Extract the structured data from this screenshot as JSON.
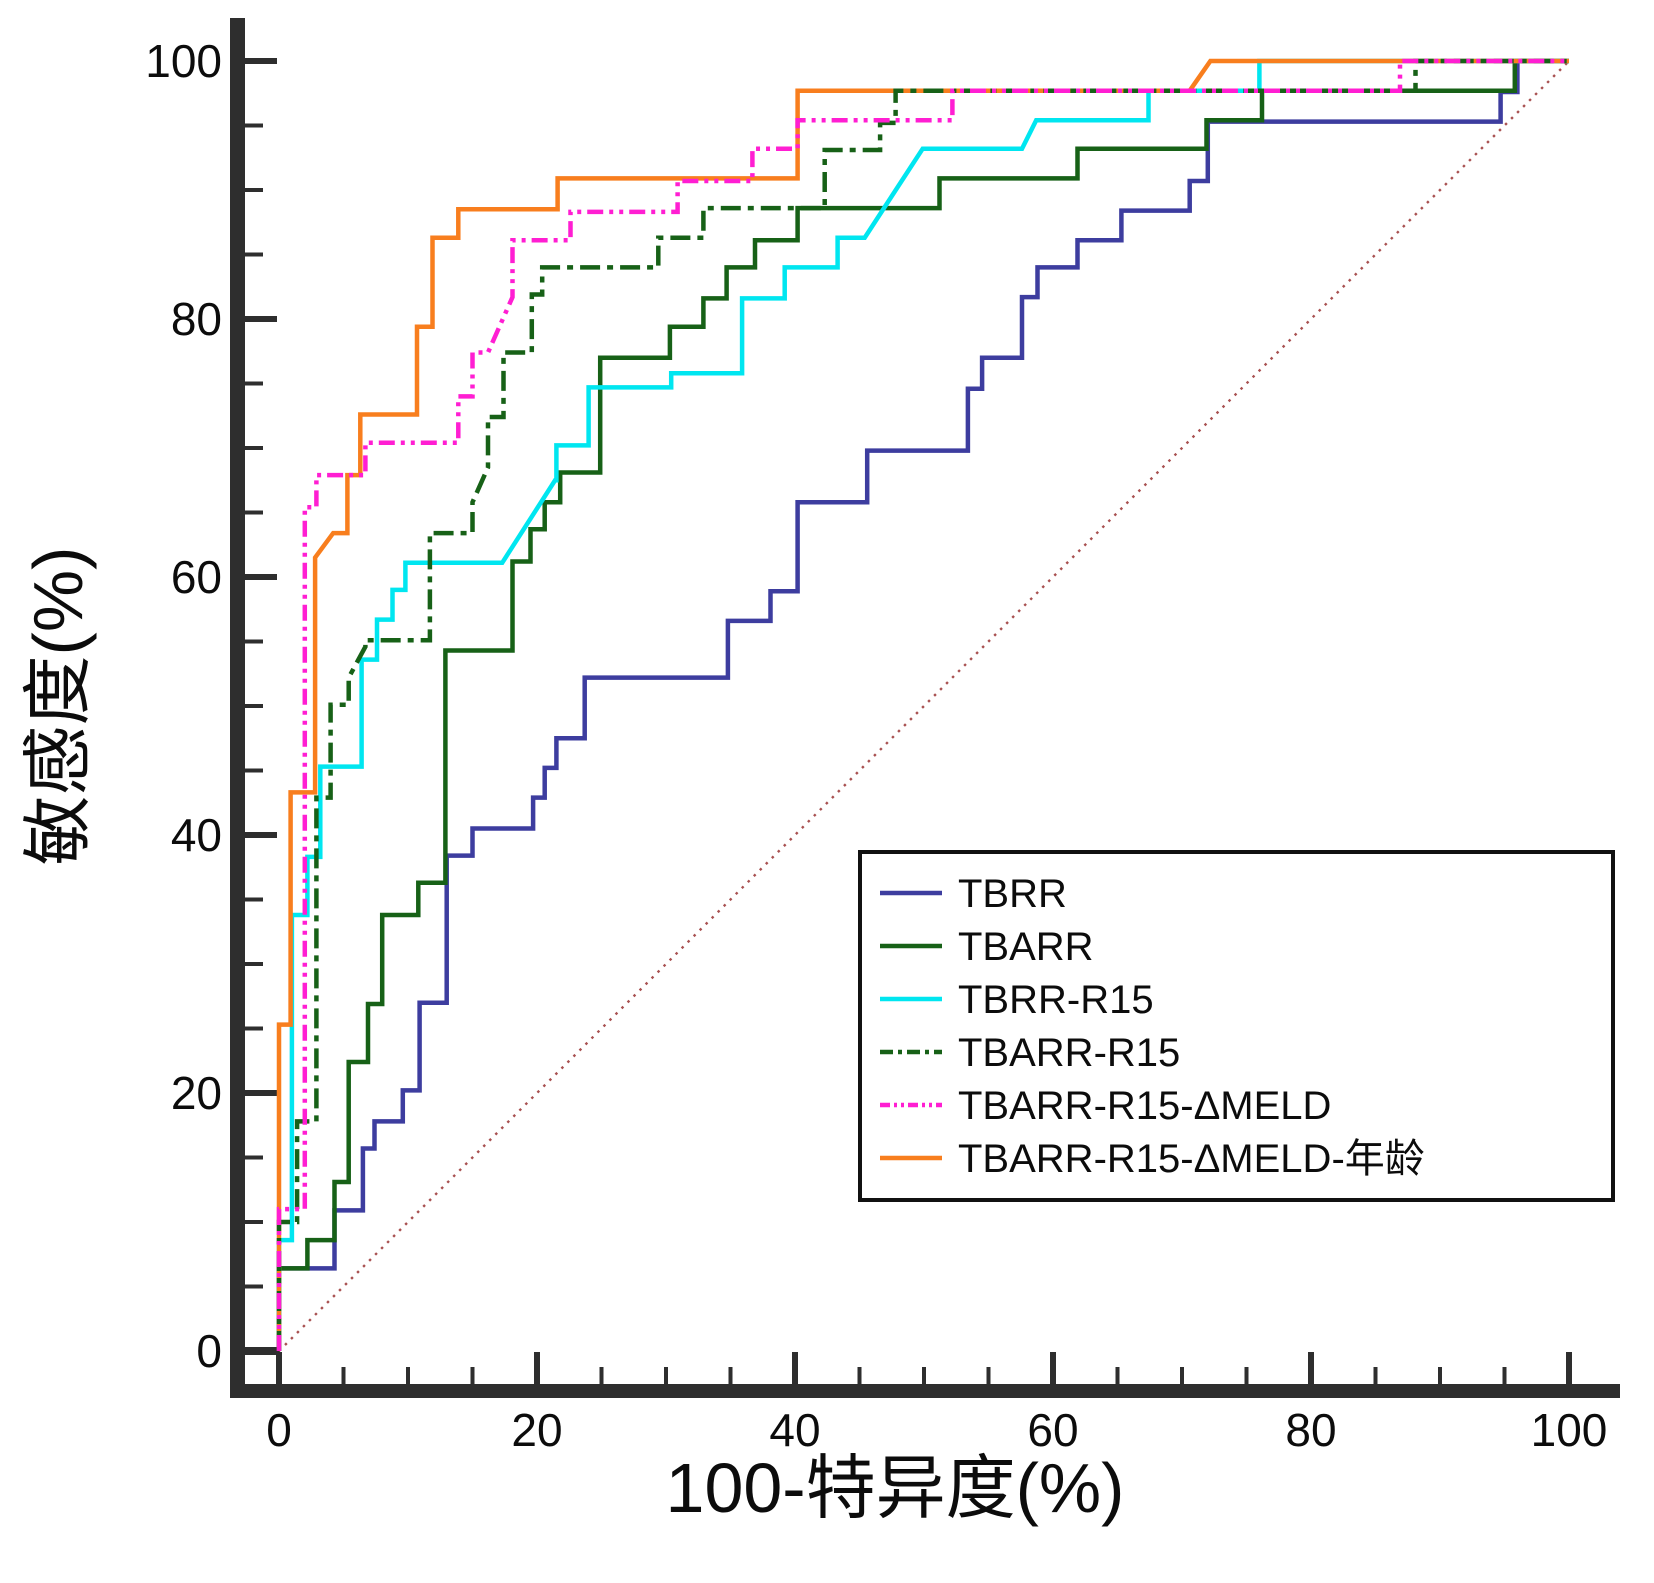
{
  "chart_data": {
    "type": "line",
    "subtype": "roc-step-curves",
    "title": "",
    "xlabel": "100-特异度(%)",
    "ylabel": "敏感度(%)",
    "xlim": [
      0,
      100
    ],
    "ylim": [
      0,
      100
    ],
    "x_major_ticks": [
      0,
      20,
      40,
      60,
      80,
      100
    ],
    "y_major_ticks": [
      0,
      20,
      40,
      60,
      80,
      100
    ],
    "minor_tick_step": 5,
    "grid": false,
    "legend_position": "inside-bottom-right",
    "axis_color": "#2e2e2e",
    "reference_line": {
      "name": "chance-diagonal",
      "from": [
        0,
        0
      ],
      "to": [
        100,
        100
      ],
      "color": "#a85050",
      "style": "dotted"
    },
    "series": [
      {
        "name": "TBRR",
        "color": "#3d3d9f",
        "line_style": "solid",
        "points": [
          [
            0,
            0
          ],
          [
            0,
            6.4
          ],
          [
            4.3,
            6.4
          ],
          [
            4.3,
            10.9
          ],
          [
            6.5,
            10.9
          ],
          [
            6.5,
            15.7
          ],
          [
            7.4,
            15.7
          ],
          [
            7.4,
            17.8
          ],
          [
            9.6,
            17.8
          ],
          [
            9.6,
            20.2
          ],
          [
            10.9,
            20.2
          ],
          [
            10.9,
            27
          ],
          [
            13,
            27
          ],
          [
            13,
            38.4
          ],
          [
            15,
            38.4
          ],
          [
            15,
            40.5
          ],
          [
            19.7,
            40.5
          ],
          [
            19.7,
            42.9
          ],
          [
            20.6,
            42.9
          ],
          [
            20.6,
            45.2
          ],
          [
            21.5,
            45.2
          ],
          [
            21.5,
            47.5
          ],
          [
            23.7,
            47.5
          ],
          [
            23.7,
            52.2
          ],
          [
            34.8,
            52.2
          ],
          [
            34.8,
            56.6
          ],
          [
            38.1,
            56.6
          ],
          [
            38.1,
            58.9
          ],
          [
            40.2,
            58.9
          ],
          [
            40.2,
            65.8
          ],
          [
            45.6,
            65.8
          ],
          [
            45.6,
            69.8
          ],
          [
            53.4,
            69.8
          ],
          [
            53.4,
            74.6
          ],
          [
            54.5,
            74.6
          ],
          [
            54.5,
            77
          ],
          [
            57.6,
            77
          ],
          [
            57.6,
            81.7
          ],
          [
            58.8,
            81.7
          ],
          [
            58.8,
            84
          ],
          [
            61.9,
            84
          ],
          [
            61.9,
            86.1
          ],
          [
            65.3,
            86.1
          ],
          [
            65.3,
            88.4
          ],
          [
            70.6,
            88.4
          ],
          [
            70.6,
            90.7
          ],
          [
            72,
            90.7
          ],
          [
            72,
            95.3
          ],
          [
            94.7,
            95.3
          ],
          [
            94.7,
            97.6
          ],
          [
            96,
            97.6
          ],
          [
            96,
            100
          ],
          [
            100,
            100
          ]
        ]
      },
      {
        "name": "TBARR",
        "color": "#176117",
        "line_style": "solid",
        "points": [
          [
            0,
            0
          ],
          [
            0,
            6.4
          ],
          [
            2.2,
            6.4
          ],
          [
            2.2,
            8.6
          ],
          [
            4.3,
            8.6
          ],
          [
            4.3,
            13.1
          ],
          [
            5.4,
            13.1
          ],
          [
            5.4,
            22.4
          ],
          [
            6.9,
            22.4
          ],
          [
            6.9,
            26.9
          ],
          [
            8,
            26.9
          ],
          [
            8,
            33.8
          ],
          [
            10.8,
            33.8
          ],
          [
            10.8,
            36.3
          ],
          [
            12.9,
            36.3
          ],
          [
            12.9,
            54.3
          ],
          [
            18.1,
            54.3
          ],
          [
            18.1,
            61.2
          ],
          [
            19.5,
            61.2
          ],
          [
            19.5,
            63.7
          ],
          [
            20.6,
            63.7
          ],
          [
            20.6,
            65.8
          ],
          [
            21.8,
            65.8
          ],
          [
            21.8,
            68.1
          ],
          [
            24.9,
            68.1
          ],
          [
            24.9,
            77
          ],
          [
            30.3,
            77
          ],
          [
            30.3,
            79.4
          ],
          [
            32.9,
            79.4
          ],
          [
            32.9,
            81.6
          ],
          [
            34.7,
            81.6
          ],
          [
            34.7,
            84
          ],
          [
            36.9,
            84
          ],
          [
            36.9,
            86.1
          ],
          [
            40.2,
            86.1
          ],
          [
            40.2,
            88.6
          ],
          [
            51.2,
            88.6
          ],
          [
            51.2,
            90.9
          ],
          [
            61.9,
            90.9
          ],
          [
            61.9,
            93.2
          ],
          [
            71.9,
            93.2
          ],
          [
            71.9,
            95.4
          ],
          [
            76.2,
            95.4
          ],
          [
            76.2,
            97.7
          ],
          [
            95.8,
            97.7
          ],
          [
            95.8,
            100
          ],
          [
            100,
            100
          ]
        ]
      },
      {
        "name": "TBRR-R15",
        "color": "#00e6f0",
        "line_style": "solid",
        "points": [
          [
            0,
            0
          ],
          [
            0,
            8.6
          ],
          [
            1,
            8.6
          ],
          [
            1,
            33.8
          ],
          [
            2.2,
            33.8
          ],
          [
            2.2,
            38.3
          ],
          [
            3.2,
            38.3
          ],
          [
            3.2,
            45.3
          ],
          [
            6.4,
            45.3
          ],
          [
            6.4,
            53.6
          ],
          [
            7.6,
            53.6
          ],
          [
            7.6,
            56.7
          ],
          [
            8.8,
            56.7
          ],
          [
            8.8,
            59
          ],
          [
            9.8,
            59
          ],
          [
            9.8,
            61.1
          ],
          [
            17.3,
            61.1
          ],
          [
            21.4,
            67.5
          ],
          [
            21.5,
            67.5
          ],
          [
            21.5,
            70.2
          ],
          [
            24,
            70.2
          ],
          [
            24,
            74.7
          ],
          [
            30.4,
            74.7
          ],
          [
            30.4,
            75.8
          ],
          [
            35.9,
            75.8
          ],
          [
            35.9,
            81.6
          ],
          [
            39.2,
            81.6
          ],
          [
            39.2,
            84
          ],
          [
            43.3,
            84
          ],
          [
            43.3,
            86.3
          ],
          [
            45.4,
            86.3
          ],
          [
            49.9,
            93.2
          ],
          [
            57.6,
            93.2
          ],
          [
            58.7,
            95.4
          ],
          [
            67.4,
            95.4
          ],
          [
            67.4,
            97.7
          ],
          [
            76,
            97.7
          ],
          [
            76,
            100
          ],
          [
            100,
            100
          ]
        ]
      },
      {
        "name": "TBARR-R15",
        "color": "#176117",
        "line_style": "dash-dot",
        "points": [
          [
            0,
            0
          ],
          [
            0,
            10
          ],
          [
            1.4,
            10
          ],
          [
            1.4,
            17.8
          ],
          [
            2.9,
            17.8
          ],
          [
            2.9,
            42.9
          ],
          [
            4,
            42.9
          ],
          [
            4,
            50.1
          ],
          [
            5.4,
            50.1
          ],
          [
            5.4,
            52.2
          ],
          [
            6.7,
            54.6
          ],
          [
            6.7,
            55.1
          ],
          [
            11.7,
            55.1
          ],
          [
            11.7,
            63.4
          ],
          [
            15,
            63.4
          ],
          [
            15,
            65.8
          ],
          [
            16.2,
            68.5
          ],
          [
            16.2,
            72.4
          ],
          [
            17.4,
            72.4
          ],
          [
            17.4,
            77.4
          ],
          [
            19.6,
            77.4
          ],
          [
            19.6,
            81.9
          ],
          [
            20.4,
            81.9
          ],
          [
            20.4,
            84
          ],
          [
            29.4,
            84
          ],
          [
            29.4,
            86.3
          ],
          [
            32.9,
            86.3
          ],
          [
            32.9,
            88.6
          ],
          [
            42.3,
            88.6
          ],
          [
            42.3,
            93.1
          ],
          [
            46.6,
            93.1
          ],
          [
            46.6,
            95.2
          ],
          [
            47.8,
            95.2
          ],
          [
            47.8,
            97.7
          ],
          [
            88.1,
            97.7
          ],
          [
            88.1,
            100
          ],
          [
            100,
            100
          ]
        ]
      },
      {
        "name": "TBARR-R15-ΔMELD",
        "color": "#ff1ed2",
        "line_style": "dash-dot-dot",
        "points": [
          [
            0,
            0
          ],
          [
            0,
            11
          ],
          [
            2,
            11
          ],
          [
            2,
            65.4
          ],
          [
            2.9,
            65.4
          ],
          [
            2.9,
            67.9
          ],
          [
            6.7,
            67.9
          ],
          [
            6.7,
            70.4
          ],
          [
            13.9,
            70.4
          ],
          [
            13.9,
            74
          ],
          [
            15,
            74
          ],
          [
            15,
            77.4
          ],
          [
            16.2,
            77.4
          ],
          [
            18.1,
            81.7
          ],
          [
            18.1,
            86.1
          ],
          [
            22.6,
            86.1
          ],
          [
            22.6,
            88.3
          ],
          [
            30.9,
            88.3
          ],
          [
            30.9,
            90.7
          ],
          [
            36.7,
            90.7
          ],
          [
            36.7,
            93.2
          ],
          [
            40.2,
            93.2
          ],
          [
            40.2,
            95.4
          ],
          [
            52.2,
            95.4
          ],
          [
            52.2,
            97.7
          ],
          [
            86.9,
            97.7
          ],
          [
            86.9,
            100
          ],
          [
            100,
            100
          ]
        ]
      },
      {
        "name": "TBARR-R15-ΔMELD-年龄",
        "color": "#f87e1e",
        "line_style": "solid",
        "points": [
          [
            0,
            0
          ],
          [
            0,
            25.3
          ],
          [
            0.9,
            25.3
          ],
          [
            0.9,
            43.3
          ],
          [
            2.8,
            43.3
          ],
          [
            2.8,
            61.5
          ],
          [
            4.2,
            63.4
          ],
          [
            5.3,
            63.4
          ],
          [
            5.3,
            67.9
          ],
          [
            6.3,
            67.9
          ],
          [
            6.3,
            72.6
          ],
          [
            10.7,
            72.6
          ],
          [
            10.7,
            79.4
          ],
          [
            11.9,
            79.4
          ],
          [
            11.9,
            86.3
          ],
          [
            13.9,
            86.3
          ],
          [
            13.9,
            88.5
          ],
          [
            21.6,
            88.5
          ],
          [
            21.6,
            90.9
          ],
          [
            40.2,
            90.9
          ],
          [
            40.2,
            97.7
          ],
          [
            70.6,
            97.7
          ],
          [
            72.2,
            100
          ],
          [
            100,
            100
          ]
        ]
      }
    ]
  }
}
